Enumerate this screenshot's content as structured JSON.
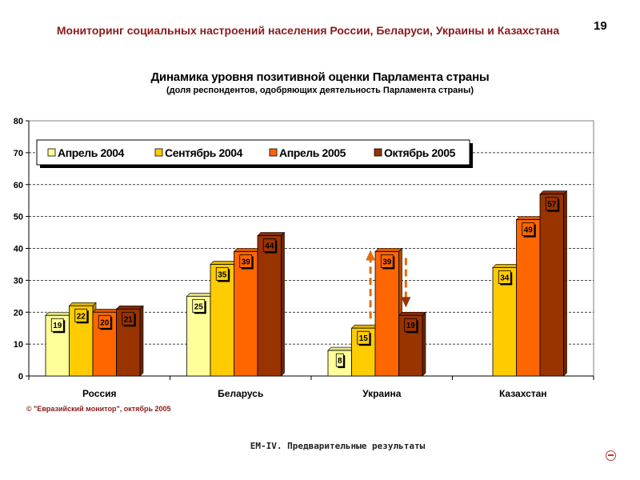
{
  "header": {
    "title": "Мониторинг социальных настроений населения России, Беларуси, Украины и Казахстана",
    "page_number": "19"
  },
  "source": "© \"Евразийский монитор\", октябрь 2005",
  "footer": "ЕМ-IV. Предварительные результаты",
  "colors": {
    "series": [
      "#ffff99",
      "#ffcc00",
      "#ff6600",
      "#993300"
    ],
    "arrow": "#e46c0a",
    "grid": "#000000"
  },
  "chart_data": {
    "type": "bar",
    "title": "Динамика уровня позитивной оценки Парламента  страны",
    "subtitle": "(доля респондентов, одобряющих деятельность Парламента страны)",
    "categories": [
      "Россия",
      "Беларусь",
      "Украина",
      "Казахстан"
    ],
    "series": [
      {
        "name": "Апрель 2004",
        "values": [
          19,
          25,
          8,
          null
        ]
      },
      {
        "name": "Сентябрь 2004",
        "values": [
          22,
          35,
          15,
          34
        ]
      },
      {
        "name": "Апрель 2005",
        "values": [
          20,
          39,
          39,
          49
        ]
      },
      {
        "name": "Октябрь 2005",
        "values": [
          21,
          44,
          19,
          57
        ]
      }
    ],
    "data_labels": [
      [
        "19",
        "25",
        "8",
        null
      ],
      [
        "22",
        "35",
        "15",
        "34"
      ],
      [
        "20",
        "39",
        "39",
        "49"
      ],
      [
        "21",
        "44",
        "19",
        "57"
      ]
    ],
    "ylim": [
      0,
      80
    ],
    "yticks": [
      0,
      10,
      20,
      30,
      40,
      50,
      60,
      70,
      80
    ],
    "grid": true,
    "legend_position": "top-left",
    "annotations": [
      {
        "type": "arrow-up",
        "category": "Украина",
        "from": 18,
        "to": 39
      },
      {
        "type": "arrow-down",
        "category": "Украина",
        "from": 37,
        "to": 22
      }
    ]
  }
}
